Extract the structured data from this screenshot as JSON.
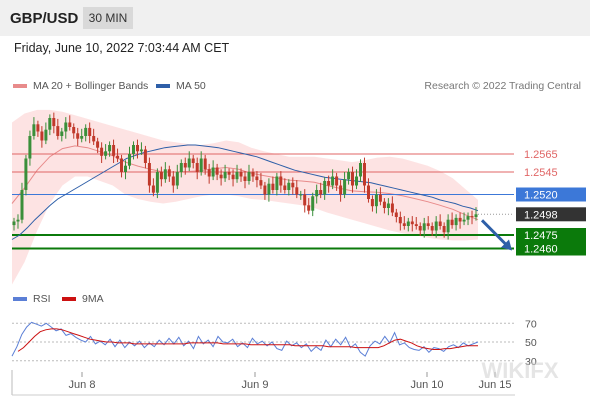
{
  "header": {
    "pair": "GBP/USD",
    "timeframe": "30 MIN"
  },
  "datetime": "Friday, June 10, 2022 7:03:44 AM CET",
  "legend": {
    "ma20": {
      "label": "MA 20 + Bollinger Bands",
      "color": "#e88b8b"
    },
    "ma50": {
      "label": "MA 50",
      "color": "#2e5fa8"
    }
  },
  "credit": "Research © 2022 Trading Central",
  "rsi_legend": {
    "rsi": {
      "label": "RSI",
      "color": "#5b7fd6"
    },
    "ma9": {
      "label": "9MA",
      "color": "#cc1111"
    }
  },
  "chart_data": {
    "type": "line",
    "subtype": "candlestick",
    "x_ticks": [
      "Jun 8",
      "Jun 9",
      "Jun 10",
      "Jun 15"
    ],
    "ylim": [
      1.2425,
      1.2625
    ],
    "price_levels": [
      {
        "value": 1.2565,
        "label": "1.2565",
        "kind": "resistance",
        "color": "#e06666"
      },
      {
        "value": 1.2545,
        "label": "1.2545",
        "kind": "resistance",
        "color": "#e06666"
      },
      {
        "value": 1.252,
        "label": "1.2520",
        "kind": "pivot",
        "color": "#3c78d8"
      },
      {
        "value": 1.2498,
        "label": "1.2498",
        "kind": "last",
        "color": "#333333"
      },
      {
        "value": 1.2475,
        "label": "1.2475",
        "kind": "support",
        "color": "#0b7a0b"
      },
      {
        "value": 1.246,
        "label": "1.2460",
        "kind": "support",
        "color": "#0b7a0b"
      }
    ],
    "close": [
      1.249,
      1.2492,
      1.2525,
      1.256,
      1.2585,
      1.2598,
      1.259,
      1.258,
      1.2592,
      1.2605,
      1.2596,
      1.2585,
      1.259,
      1.26,
      1.2595,
      1.2588,
      1.2582,
      1.2585,
      1.2594,
      1.2585,
      1.2579,
      1.2572,
      1.2563,
      1.2568,
      1.2575,
      1.2563,
      1.256,
      1.2545,
      1.2552,
      1.2565,
      1.2575,
      1.2568,
      1.257,
      1.2555,
      1.253,
      1.2522,
      1.2545,
      1.2537,
      1.2548,
      1.254,
      1.253,
      1.2545,
      1.2555,
      1.255,
      1.256,
      1.2555,
      1.2545,
      1.256,
      1.2548,
      1.254,
      1.255,
      1.2542,
      1.2538,
      1.2545,
      1.2542,
      1.2537,
      1.2545,
      1.254,
      1.2535,
      1.2545,
      1.254,
      1.2536,
      1.253,
      1.252,
      1.2532,
      1.2525,
      1.254,
      1.253,
      1.2525,
      1.2533,
      1.2528,
      1.252,
      1.252,
      1.2508,
      1.2502,
      1.2518,
      1.2525,
      1.252,
      1.2535,
      1.253,
      1.254,
      1.253,
      1.252,
      1.2537,
      1.2545,
      1.253,
      1.254,
      1.2555,
      1.253,
      1.2515,
      1.2507,
      1.252,
      1.2512,
      1.2505,
      1.251,
      1.25,
      1.2495,
      1.2488,
      1.2485,
      1.249,
      1.2487,
      1.2485,
      1.248,
      1.2488,
      1.2485,
      1.248,
      1.249,
      1.2485,
      1.2478,
      1.2492,
      1.2486,
      1.2494,
      1.249,
      1.2492,
      1.2496,
      1.2495,
      1.2498
    ],
    "ma50": [
      1.247,
      1.2475,
      1.2483,
      1.2492,
      1.25,
      1.2508,
      1.2515,
      1.252,
      1.2525,
      1.253,
      1.2535,
      1.254,
      1.2545,
      1.255,
      1.2555,
      1.256,
      1.2563,
      1.2566,
      1.2568,
      1.257,
      1.2572,
      1.2573,
      1.2574,
      1.2575,
      1.2575,
      1.2574,
      1.2573,
      1.2572,
      1.257,
      1.2568,
      1.2566,
      1.2564,
      1.2562,
      1.2559,
      1.2556,
      1.2553,
      1.255,
      1.2547,
      1.2545,
      1.2543,
      1.2541,
      1.2539,
      1.2538,
      1.2537,
      1.2536,
      1.2535,
      1.2534,
      1.2533,
      1.2531,
      1.2529,
      1.2527,
      1.2525,
      1.2523,
      1.2521,
      1.2519,
      1.2517,
      1.2514,
      1.2512,
      1.251,
      1.2507,
      1.2505,
      1.2502
    ],
    "bb_upper": [
      1.26,
      1.261,
      1.2614,
      1.2614,
      1.2612,
      1.2608,
      1.2604,
      1.26,
      1.2596,
      1.2592,
      1.2588,
      1.2584,
      1.258,
      1.2578,
      1.2576,
      1.2575,
      1.2577,
      1.258,
      1.2578,
      1.2572,
      1.2568,
      1.2565,
      1.2562,
      1.2562,
      1.2562,
      1.256,
      1.2558,
      1.2556,
      1.2558,
      1.2561,
      1.2562,
      1.256,
      1.2556,
      1.2552,
      1.2546,
      1.2538,
      1.2526,
      1.2514
    ],
    "bb_lower": [
      1.242,
      1.2445,
      1.248,
      1.251,
      1.253,
      1.254,
      1.254,
      1.2535,
      1.253,
      1.252,
      1.2515,
      1.2512,
      1.251,
      1.2512,
      1.2515,
      1.2518,
      1.252,
      1.252,
      1.2518,
      1.2515,
      1.2514,
      1.2512,
      1.251,
      1.2508,
      1.2505,
      1.25,
      1.2496,
      1.2492,
      1.2488,
      1.2484,
      1.248,
      1.2477,
      1.2475,
      1.2472,
      1.247,
      1.2469,
      1.2469,
      1.247
    ],
    "rsi_axis": {
      "ticks": [
        70,
        50,
        30
      ],
      "ylim": [
        18,
        82
      ]
    },
    "rsi": [
      35,
      45,
      58,
      66,
      71,
      69,
      67,
      70,
      66,
      62,
      64,
      57,
      59,
      55,
      52,
      50,
      56,
      48,
      51,
      47,
      53,
      45,
      52,
      44,
      50,
      46,
      51,
      44,
      49,
      45,
      52,
      47,
      54,
      48,
      55,
      46,
      51,
      43,
      56,
      48,
      52,
      45,
      56,
      50,
      49,
      53,
      45,
      49,
      44,
      54,
      48,
      51,
      46,
      50,
      43,
      41,
      51,
      46,
      49,
      44,
      48,
      40,
      45,
      41,
      52,
      45,
      53,
      47,
      55,
      44,
      48,
      39,
      35,
      46,
      51,
      48,
      56,
      49,
      60,
      47,
      49,
      44,
      42,
      41,
      45,
      39,
      44,
      43,
      40,
      45,
      47,
      44,
      49,
      46,
      48,
      50
    ],
    "rsi_ma9": [
      40,
      44,
      50,
      56,
      61,
      63,
      64,
      64,
      63,
      61,
      59,
      57,
      55,
      53,
      52,
      51,
      50,
      50,
      49,
      49,
      49,
      48,
      48,
      48,
      48,
      48,
      48,
      48,
      48,
      48,
      48,
      49,
      49,
      49,
      49,
      49,
      49,
      48,
      48,
      48,
      48,
      48,
      47,
      47,
      47,
      47,
      47,
      47,
      47,
      47,
      46,
      46,
      46,
      46,
      46,
      46,
      45,
      45,
      45,
      45,
      45,
      44,
      44,
      44,
      44,
      44,
      46,
      49,
      52,
      53,
      51,
      49,
      46,
      44,
      43,
      42,
      42,
      43,
      43,
      44,
      45,
      46,
      46,
      46
    ],
    "watermark": "WIKIFX"
  }
}
